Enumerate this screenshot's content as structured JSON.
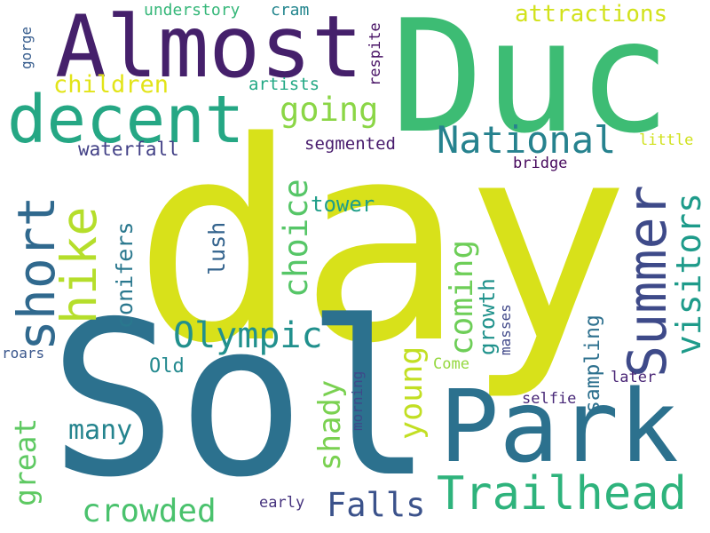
{
  "words": [
    {
      "text": "day",
      "color": "#d8e11a",
      "orientation": "horizontal"
    },
    {
      "text": "Sol",
      "color": "#2c718e",
      "orientation": "horizontal"
    },
    {
      "text": "Duc",
      "color": "#3dbc74",
      "orientation": "horizontal"
    },
    {
      "text": "Park",
      "color": "#2c718e",
      "orientation": "horizontal"
    },
    {
      "text": "Almost",
      "color": "#45206b",
      "orientation": "horizontal"
    },
    {
      "text": "decent",
      "color": "#25a784",
      "orientation": "horizontal"
    },
    {
      "text": "Summer",
      "color": "#3e4a89",
      "orientation": "vertical"
    },
    {
      "text": "short",
      "color": "#30698e",
      "orientation": "vertical"
    },
    {
      "text": "hike",
      "color": "#b5de2b",
      "orientation": "vertical"
    },
    {
      "text": "Trailhead",
      "color": "#2eb37c",
      "orientation": "horizontal"
    },
    {
      "text": "National",
      "color": "#26828e",
      "orientation": "horizontal"
    },
    {
      "text": "Olympic",
      "color": "#21908d",
      "orientation": "horizontal"
    },
    {
      "text": "visitors",
      "color": "#1e9b8a",
      "orientation": "vertical"
    },
    {
      "text": "choice",
      "color": "#56c667",
      "orientation": "vertical"
    },
    {
      "text": "going",
      "color": "#8bd646",
      "orientation": "horizontal"
    },
    {
      "text": "Falls",
      "color": "#3b528b",
      "orientation": "horizontal"
    },
    {
      "text": "crowded",
      "color": "#4ac26d",
      "orientation": "horizontal"
    },
    {
      "text": "coming",
      "color": "#6ece58",
      "orientation": "vertical"
    },
    {
      "text": "young",
      "color": "#c2df23",
      "orientation": "vertical"
    },
    {
      "text": "shady",
      "color": "#7ad151",
      "orientation": "vertical"
    },
    {
      "text": "great",
      "color": "#5ec962",
      "orientation": "vertical"
    },
    {
      "text": "many",
      "color": "#25848e",
      "orientation": "horizontal"
    },
    {
      "text": "children",
      "color": "#e2e418",
      "orientation": "horizontal"
    },
    {
      "text": "attractions",
      "color": "#d2e21b",
      "orientation": "horizontal"
    },
    {
      "text": "conifers",
      "color": "#2a788e",
      "orientation": "vertical"
    },
    {
      "text": "lush",
      "color": "#33638d",
      "orientation": "vertical"
    },
    {
      "text": "tower",
      "color": "#1f9e89",
      "orientation": "horizontal"
    },
    {
      "text": "growth",
      "color": "#20928c",
      "orientation": "vertical"
    },
    {
      "text": "sampling",
      "color": "#2d708e",
      "orientation": "vertical"
    },
    {
      "text": "Old",
      "color": "#23898e",
      "orientation": "horizontal"
    },
    {
      "text": "waterfall",
      "color": "#424086",
      "orientation": "horizontal"
    },
    {
      "text": "segmented",
      "color": "#481b6d",
      "orientation": "horizontal"
    },
    {
      "text": "artists",
      "color": "#22a884",
      "orientation": "horizontal"
    },
    {
      "text": "understory",
      "color": "#35b779",
      "orientation": "horizontal"
    },
    {
      "text": "cram",
      "color": "#24868e",
      "orientation": "horizontal"
    },
    {
      "text": "respite",
      "color": "#471164",
      "orientation": "vertical"
    },
    {
      "text": "gorge",
      "color": "#365c8d",
      "orientation": "vertical"
    },
    {
      "text": "little",
      "color": "#d0e11c",
      "orientation": "horizontal"
    },
    {
      "text": "bridge",
      "color": "#46085c",
      "orientation": "horizontal"
    },
    {
      "text": "masses",
      "color": "#3f4788",
      "orientation": "vertical"
    },
    {
      "text": "roars",
      "color": "#39568c",
      "orientation": "horizontal"
    },
    {
      "text": "Come",
      "color": "#95d840",
      "orientation": "horizontal"
    },
    {
      "text": "later",
      "color": "#482475",
      "orientation": "horizontal"
    },
    {
      "text": "selfie",
      "color": "#482878",
      "orientation": "horizontal"
    },
    {
      "text": "morning",
      "color": "#3e4989",
      "orientation": "vertical"
    },
    {
      "text": "early",
      "color": "#46337e",
      "orientation": "horizontal"
    }
  ]
}
